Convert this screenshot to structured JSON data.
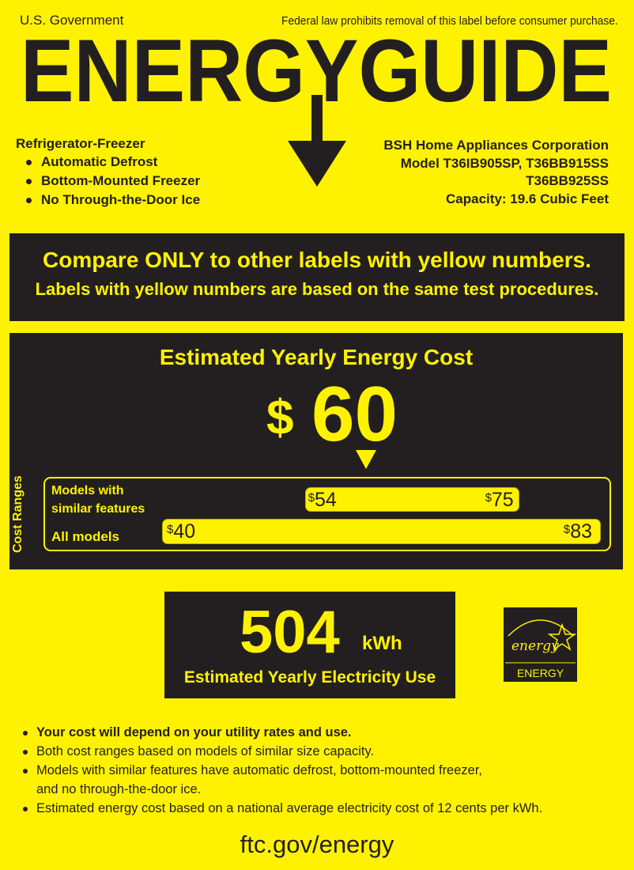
{
  "header": {
    "left": "U.S. Government",
    "right": "Federal law prohibits removal of this label before consumer purchase.",
    "logo_text": "ENERGYGUIDE"
  },
  "product": {
    "type": "Refrigerator-Freezer",
    "features": [
      "Automatic Defrost",
      "Bottom-Mounted Freezer",
      "No Through-the-Door Ice"
    ]
  },
  "manufacturer": {
    "name": "BSH Home Appliances Corporation",
    "model_line1": "Model T36IB905SP, T36BB915SS",
    "model_line2": "T36BB925SS",
    "capacity": "Capacity: 19.6 Cubic Feet"
  },
  "compare": {
    "headline": "Compare ONLY to other labels with yellow numbers.",
    "sub": "Labels with yellow numbers are based on the same test procedures."
  },
  "cost": {
    "title": "Estimated Yearly Energy Cost",
    "currency": "$",
    "value": 60,
    "value_text": "60",
    "side_label": "Cost Ranges",
    "similar_label_1": "Models with",
    "similar_label_2": "similar features",
    "all_label": "All models",
    "similar_min": 54,
    "similar_max": 75,
    "all_min": 40,
    "all_max": 83,
    "similar_min_text": "54",
    "similar_max_text": "75",
    "all_min_text": "40",
    "all_max_text": "83"
  },
  "electricity": {
    "value": "504",
    "unit": "kWh",
    "label": "Estimated Yearly Electricity Use"
  },
  "energy_star": {
    "script": "energy",
    "label": "ENERGY STAR"
  },
  "notes": [
    "Your cost will depend on your utility rates and use.",
    "Both cost ranges based on models of similar size capacity.",
    "Models with similar features have automatic defrost, bottom-mounted freezer,",
    "and no through-the-door ice.",
    "Estimated energy cost based on a national average electricity cost of 12 cents per kWh."
  ],
  "footer": {
    "url": "ftc.gov/energy"
  },
  "colors": {
    "yellow": "#fff200",
    "dark": "#231f20"
  }
}
